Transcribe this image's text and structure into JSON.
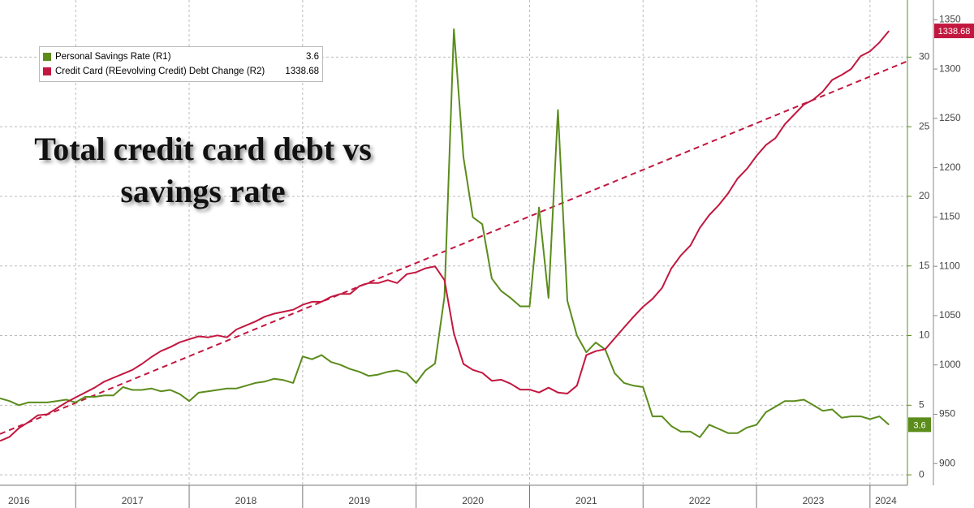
{
  "chart_data": {
    "type": "line",
    "title": "Total credit card debt vs savings rate",
    "x": [
      2016.333,
      2016.417,
      2016.5,
      2016.583,
      2016.667,
      2016.75,
      2016.833,
      2016.917,
      2017,
      2017.083,
      2017.167,
      2017.25,
      2017.333,
      2017.417,
      2017.5,
      2017.583,
      2017.667,
      2017.75,
      2017.833,
      2017.917,
      2018,
      2018.083,
      2018.167,
      2018.25,
      2018.333,
      2018.417,
      2018.5,
      2018.583,
      2018.667,
      2018.75,
      2018.833,
      2018.917,
      2019,
      2019.083,
      2019.167,
      2019.25,
      2019.333,
      2019.417,
      2019.5,
      2019.583,
      2019.667,
      2019.75,
      2019.833,
      2019.917,
      2020,
      2020.083,
      2020.167,
      2020.25,
      2020.333,
      2020.417,
      2020.5,
      2020.583,
      2020.667,
      2020.75,
      2020.833,
      2020.917,
      2021,
      2021.083,
      2021.167,
      2021.25,
      2021.333,
      2021.417,
      2021.5,
      2021.583,
      2021.667,
      2021.75,
      2021.833,
      2021.917,
      2022,
      2022.083,
      2022.167,
      2022.25,
      2022.333,
      2022.417,
      2022.5,
      2022.583,
      2022.667,
      2022.75,
      2022.833,
      2022.917,
      2023,
      2023.083,
      2023.167,
      2023.25,
      2023.333,
      2023.417,
      2023.5,
      2023.583,
      2023.667,
      2023.75,
      2023.833,
      2023.917,
      2024,
      2024.083,
      2024.167
    ],
    "series": [
      {
        "name": "Personal Savings Rate (R1)",
        "color": "#5b8c1c",
        "axis": "y",
        "values": [
          5.5,
          5.3,
          5.0,
          5.2,
          5.2,
          5.2,
          5.3,
          5.4,
          5.2,
          5.6,
          5.6,
          5.7,
          5.7,
          6.3,
          6.1,
          6.1,
          6.2,
          6.0,
          6.1,
          5.8,
          5.3,
          5.9,
          6.0,
          6.1,
          6.2,
          6.2,
          6.4,
          6.6,
          6.7,
          6.9,
          6.8,
          6.6,
          8.5,
          8.3,
          8.6,
          8.1,
          7.9,
          7.6,
          7.4,
          7.1,
          7.2,
          7.4,
          7.5,
          7.3,
          6.6,
          7.5,
          8.0,
          12.8,
          32.0,
          22.8,
          18.5,
          18.0,
          14.1,
          13.2,
          12.7,
          12.1,
          12.1,
          19.2,
          12.7,
          26.2,
          12.5,
          10.0,
          8.8,
          9.5,
          9.0,
          7.3,
          6.6,
          6.4,
          6.3,
          4.2,
          4.2,
          3.5,
          3.1,
          3.1,
          2.7,
          3.6,
          3.3,
          3.0,
          3.0,
          3.4,
          3.6,
          4.5,
          4.9,
          5.3,
          5.3,
          5.4,
          5.0,
          4.6,
          4.7,
          4.1,
          4.2,
          4.2,
          4.0,
          4.2,
          3.6
        ]
      },
      {
        "name": "Credit Card (REevolving Credit) Debt Change (R2)",
        "color": "#c2173f",
        "axis": "y2",
        "values": [
          923,
          927,
          936,
          942,
          949,
          950,
          956,
          962,
          967,
          972,
          977,
          983,
          987,
          991,
          995,
          1001,
          1008,
          1014,
          1018,
          1023,
          1026,
          1029,
          1028,
          1030,
          1028,
          1036,
          1040,
          1044,
          1049,
          1052,
          1054,
          1056,
          1061,
          1064,
          1064,
          1069,
          1072,
          1072,
          1080,
          1083,
          1083,
          1086,
          1083,
          1092,
          1094,
          1098,
          1100,
          1086,
          1032,
          1001,
          995,
          992,
          984,
          985,
          981,
          975,
          975,
          972,
          977,
          972,
          971,
          979,
          1010,
          1014,
          1016,
          1027,
          1038,
          1049,
          1059,
          1067,
          1078,
          1098,
          1111,
          1121,
          1139,
          1152,
          1162,
          1174,
          1189,
          1199,
          1212,
          1223,
          1230,
          1244,
          1254,
          1264,
          1269,
          1277,
          1289,
          1294,
          1300,
          1313,
          1318,
          1327,
          1338.68
        ]
      }
    ],
    "trendline": {
      "x": [
        2016.333,
        2024.33
      ],
      "values": [
        930,
        1308
      ],
      "axis": "y2",
      "color": "#c2173f"
    },
    "xlim": [
      2016.333,
      2024.33
    ],
    "xticks": [
      2017,
      2018,
      2019,
      2020,
      2021,
      2022,
      2023,
      2024
    ],
    "year_labels": [
      {
        "value": 2016.5,
        "label": "2016"
      },
      {
        "value": 2017.5,
        "label": "2017"
      },
      {
        "value": 2018.5,
        "label": "2018"
      },
      {
        "value": 2019.5,
        "label": "2019"
      },
      {
        "value": 2020.5,
        "label": "2020"
      },
      {
        "value": 2021.5,
        "label": "2021"
      },
      {
        "value": 2022.5,
        "label": "2022"
      },
      {
        "value": 2023.5,
        "label": "2023"
      },
      {
        "value": 2024.14,
        "label": "2024"
      }
    ],
    "ylim": [
      -0.75,
      34.1
    ],
    "yticks": [
      0,
      5,
      10,
      15,
      20,
      25,
      30
    ],
    "y2lim": [
      878,
      1370
    ],
    "y2ticks": [
      900,
      950,
      1000,
      1050,
      1100,
      1150,
      1200,
      1250,
      1300,
      1350
    ],
    "grid": true
  }
}
